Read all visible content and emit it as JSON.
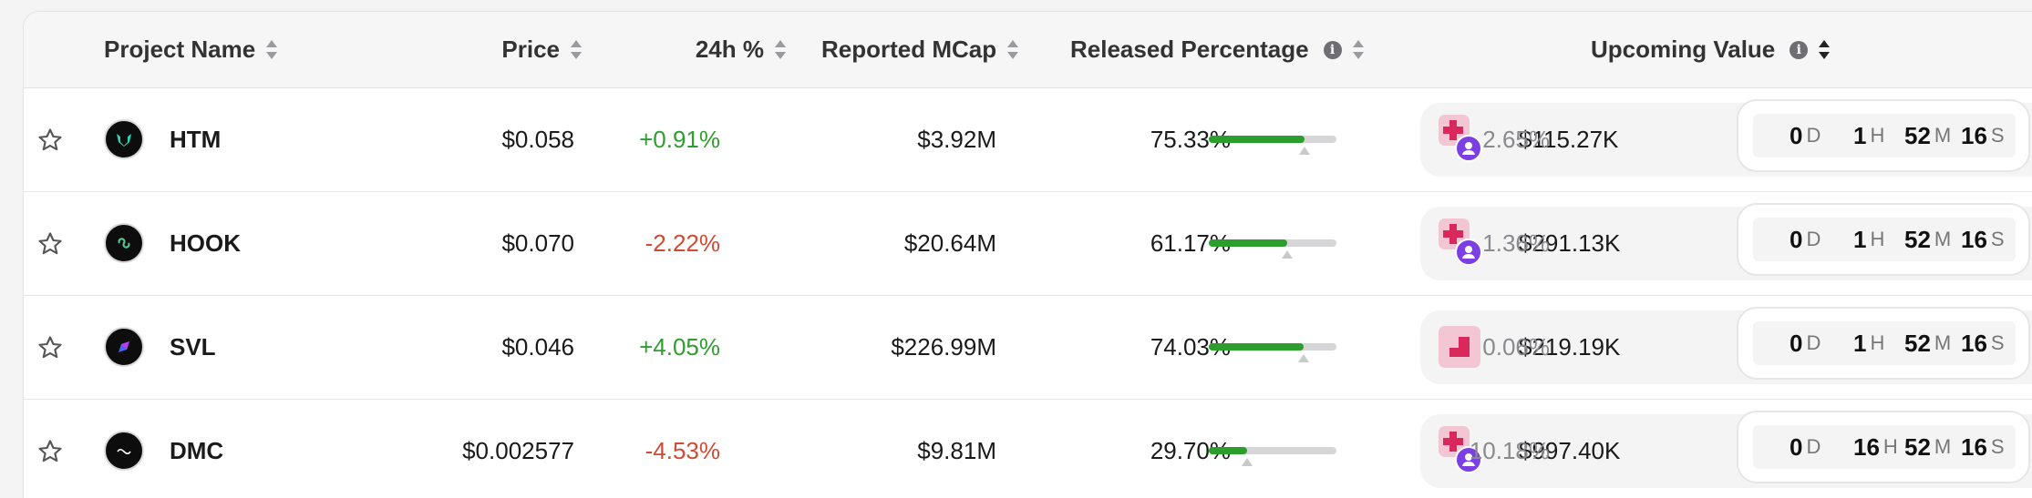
{
  "header": {
    "project_name": "Project Name",
    "price": "Price",
    "change_24h": "24h %",
    "reported_mcap": "Reported MCap",
    "released_percentage": "Released Percentage",
    "upcoming_value": "Upcoming Value",
    "info_glyph": "i"
  },
  "icons": {
    "star": "star-outline-icon",
    "sort": "sort-icon",
    "info": "info-icon"
  },
  "colors": {
    "positive": "#2e9e2e",
    "negative": "#d04a35",
    "bar_fill": "#2c9e2c",
    "unlock_badge": "#f2c6d2",
    "avatar": "#7b3fe4"
  },
  "rows": [
    {
      "name": "HTM",
      "price": "$0.058",
      "change": "+0.91%",
      "change_dir": "pos",
      "mcap": "$3.92M",
      "released": "75.33%",
      "released_fraction": 0.7533,
      "upcoming_fraction": 0.7533,
      "upcoming": "$115.27K",
      "upcoming_pct": "2.65%",
      "timer": {
        "d": "0",
        "h": "1",
        "m": "52",
        "s": "16",
        "du": "D",
        "hu": "H",
        "mu": "M",
        "su": "S"
      }
    },
    {
      "name": "HOOK",
      "price": "$0.070",
      "change": "-2.22%",
      "change_dir": "neg",
      "mcap": "$20.64M",
      "released": "61.17%",
      "released_fraction": 0.6117,
      "upcoming_fraction": 0.6117,
      "upcoming": "$291.13K",
      "upcoming_pct": "1.36%",
      "timer": {
        "d": "0",
        "h": "1",
        "m": "52",
        "s": "16",
        "du": "D",
        "hu": "H",
        "mu": "M",
        "su": "S"
      }
    },
    {
      "name": "SVL",
      "price": "$0.046",
      "change": "+4.05%",
      "change_dir": "pos",
      "mcap": "$226.99M",
      "released": "74.03%",
      "released_fraction": 0.7403,
      "upcoming_fraction": 0.7403,
      "upcoming": "$219.19K",
      "upcoming_pct": "0.06%",
      "timer": {
        "d": "0",
        "h": "1",
        "m": "52",
        "s": "16",
        "du": "D",
        "hu": "H",
        "mu": "M",
        "su": "S"
      }
    },
    {
      "name": "DMC",
      "price": "$0.002577",
      "change": "-4.53%",
      "change_dir": "neg",
      "mcap": "$9.81M",
      "released": "29.70%",
      "released_fraction": 0.297,
      "upcoming_fraction": 0.297,
      "upcoming": "$997.40K",
      "upcoming_pct": "10.18%",
      "timer": {
        "d": "0",
        "h": "16",
        "m": "52",
        "s": "16",
        "du": "D",
        "hu": "H",
        "mu": "M",
        "su": "S"
      }
    }
  ]
}
